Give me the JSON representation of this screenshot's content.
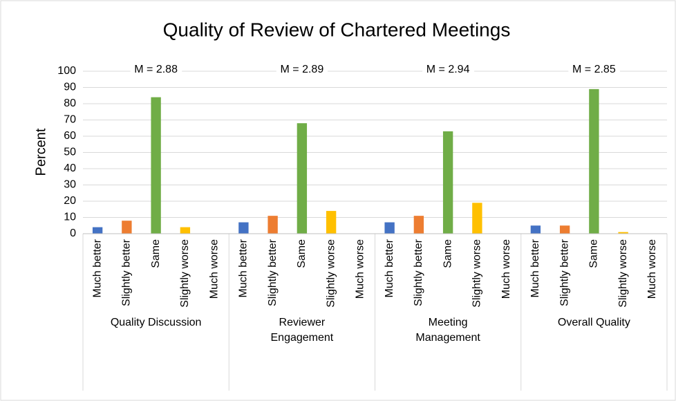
{
  "chart_data": {
    "type": "bar",
    "title": "Quality of Review of Chartered Meetings",
    "y_label": "Percent",
    "categories": [
      "Much better",
      "Slightly better",
      "Same",
      "Slightly worse",
      "Much worse"
    ],
    "colors": [
      "#4472c4",
      "#ed7d31",
      "#70ad47",
      "#ffc000",
      "#5b9bd5"
    ],
    "groups": [
      {
        "name": "Quality Discussion",
        "annotation": "M = 2.88",
        "values": [
          4,
          8,
          84,
          4,
          0
        ]
      },
      {
        "name": "Reviewer Engagement",
        "annotation": "M = 2.89",
        "values": [
          7,
          11,
          68,
          14,
          0
        ]
      },
      {
        "name": "Meeting Management",
        "annotation": "M = 2.94",
        "values": [
          7,
          11,
          63,
          19,
          0
        ]
      },
      {
        "name": "Overall Quality",
        "annotation": "M = 2.85",
        "values": [
          5,
          5,
          89,
          1,
          0
        ]
      }
    ],
    "ylim": [
      0,
      100
    ],
    "yticks": [
      0,
      10,
      20,
      30,
      40,
      50,
      60,
      70,
      80,
      90,
      100
    ],
    "grid": true
  }
}
